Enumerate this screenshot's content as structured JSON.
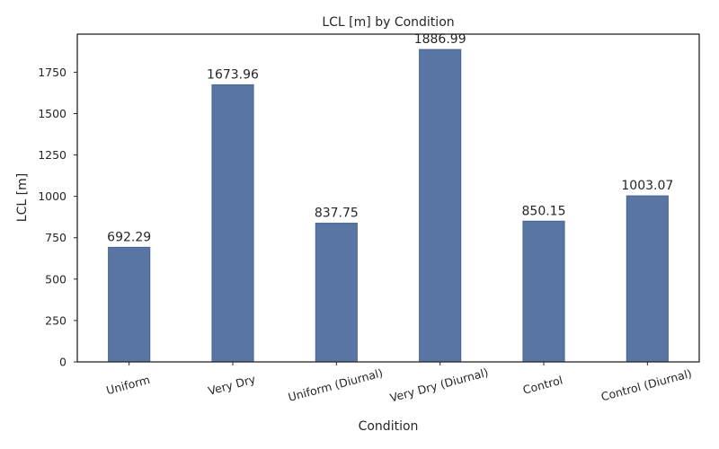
{
  "chart_data": {
    "type": "bar",
    "title": "LCL [m] by Condition",
    "xlabel": "Condition",
    "ylabel": "LCL [m]",
    "categories": [
      "Uniform",
      "Very Dry",
      "Uniform (Diurnal)",
      "Very Dry (Diurnal)",
      "Control",
      "Control (Diurnal)"
    ],
    "values": [
      692.29,
      1673.96,
      837.75,
      1886.99,
      850.15,
      1003.07
    ],
    "value_labels": [
      "692.29",
      "1673.96",
      "837.75",
      "1886.99",
      "850.15",
      "1003.07"
    ],
    "ylim": [
      0,
      1980
    ],
    "yticks": [
      0,
      250,
      500,
      750,
      1000,
      1250,
      1500,
      1750
    ],
    "ytick_labels": [
      "0",
      "250",
      "500",
      "750",
      "1000",
      "1250",
      "1500",
      "1750"
    ],
    "xtick_rotation_deg": 15,
    "grid": false,
    "legend": "none",
    "bar_color": "#5875a4",
    "bar_edge_color": "#4a6592",
    "frame_color": "#262626"
  }
}
